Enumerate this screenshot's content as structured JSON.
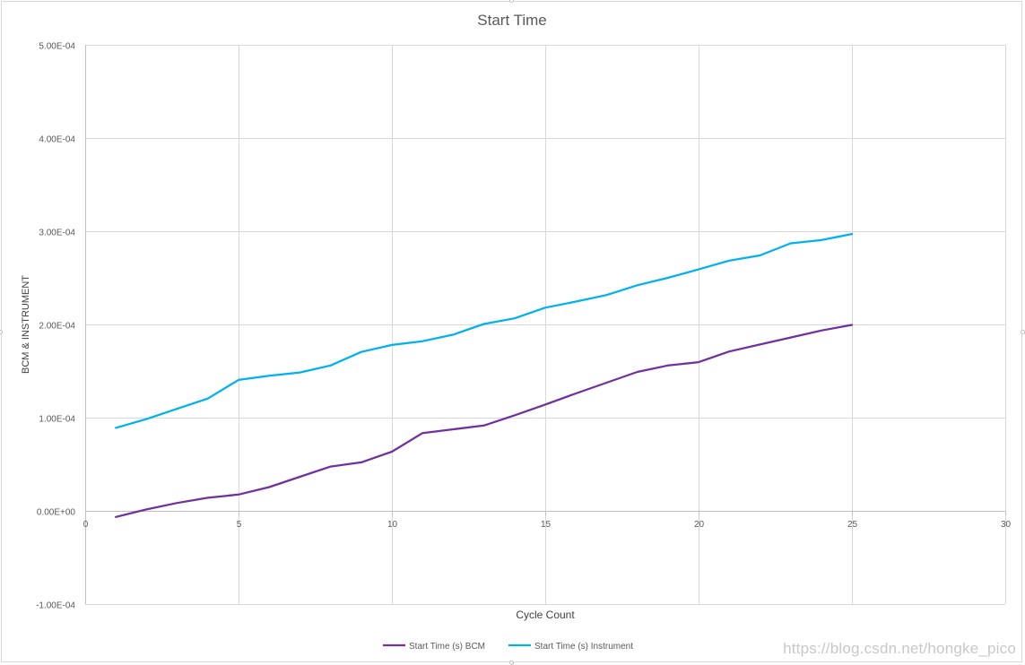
{
  "chart_data": {
    "type": "line",
    "title": "Start Time",
    "xlabel": "Cycle Count",
    "ylabel": "BCM & INSTRUMENT",
    "xlim": [
      0,
      30
    ],
    "ylim": [
      -0.0001,
      0.0005
    ],
    "xticks": [
      0,
      5,
      10,
      15,
      20,
      25,
      30
    ],
    "xtick_labels": [
      "0",
      "5",
      "10",
      "15",
      "20",
      "25",
      "30"
    ],
    "yticks": [
      -0.0001,
      0,
      0.0001,
      0.0002,
      0.0003,
      0.0004,
      0.0005
    ],
    "ytick_labels": [
      "-1.00E-04",
      "0.00E+00",
      "1.00E-04",
      "2.00E-04",
      "3.00E-04",
      "4.00E-04",
      "5.00E-04"
    ],
    "grid": true,
    "legend_position": "bottom",
    "x": [
      1,
      2,
      3,
      4,
      5,
      6,
      7,
      8,
      9,
      10,
      11,
      12,
      13,
      14,
      15,
      16,
      17,
      18,
      19,
      20,
      21,
      22,
      23,
      24,
      25
    ],
    "series": [
      {
        "name": "Start Time (s) BCM",
        "color": "#7030a0",
        "values": [
          -6.5e-06,
          1.5e-06,
          8.5e-06,
          1.4e-05,
          1.75e-05,
          2.55e-05,
          3.65e-05,
          4.75e-05,
          5.2e-05,
          6.35e-05,
          8.35e-05,
          8.75e-05,
          9.15e-05,
          0.0001025,
          0.000114,
          0.000126,
          0.0001375,
          0.000149,
          0.000156,
          0.0001595,
          0.000171,
          0.0001785,
          0.000186,
          0.0001935,
          0.0001995
        ]
      },
      {
        "name": "Start Time (s) Instrument",
        "color": "#00b0f0",
        "values": [
          8.9e-05,
          9.85e-05,
          0.0001095,
          0.0001205,
          0.0001405,
          0.000145,
          0.0001485,
          0.000156,
          0.0001705,
          0.000178,
          0.000182,
          0.000189,
          0.0002005,
          0.0002065,
          0.000218,
          0.0002245,
          0.0002315,
          0.000242,
          0.00025,
          0.000259,
          0.0002685,
          0.000274,
          0.000287,
          0.0002905,
          0.000297
        ]
      }
    ]
  },
  "watermark": "https://blog.csdn.net/hongke_pico"
}
